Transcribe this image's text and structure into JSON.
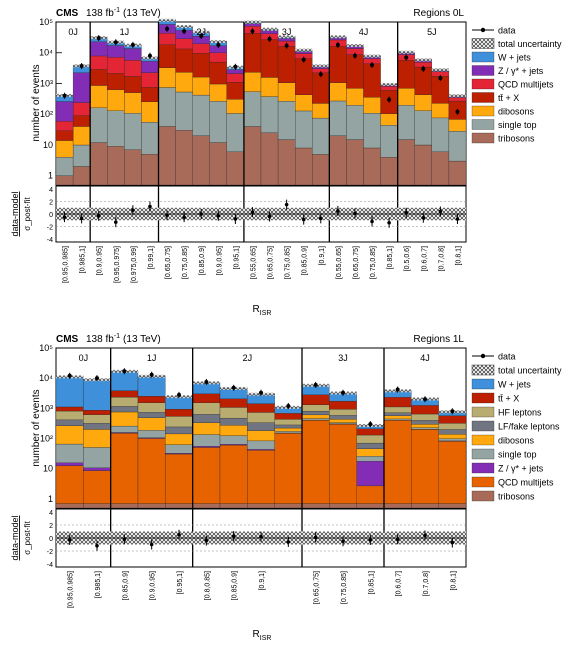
{
  "colors": {
    "wjets": "#3f90da",
    "zjets": "#832db6",
    "qcd": "#e42536",
    "ttx": "#bd1f01",
    "dibosons": "#ffa90e",
    "singletop": "#94a4a2",
    "tribosons": "#a96b59",
    "hf": "#b9ac70",
    "lf": "#717581",
    "qcd1l": "#e76300"
  },
  "chart_data": [
    {
      "type": "bar",
      "stacked": true,
      "y_scale": "log",
      "experiment": "CMS",
      "lumi": "138 fb",
      "lumi_sup": "-1",
      "energy": "(13 TeV)",
      "region": "Regions 0L",
      "ylabel": "number of events",
      "ratio_label": "data-model",
      "ratio_sublabel": "σ_post-fit",
      "ratio_ylim": [
        -4,
        4
      ],
      "ratio_ticks": [
        "4",
        "2",
        "0",
        "-2",
        "-4"
      ],
      "xlabel": "R_ISR",
      "y_tick_labels": [
        "10⁵",
        "10⁴",
        "10³",
        "10²",
        "10",
        "1"
      ],
      "ylim": [
        0.5,
        100000
      ],
      "jet_groups": [
        "0J",
        "1J",
        "2J",
        "3J",
        "4J",
        "5J"
      ],
      "bins_per_group": [
        2,
        4,
        5,
        5,
        4,
        4
      ],
      "categories": [
        "[0.95,0.985]",
        "[0.985,1]",
        "[0.9,0.95]",
        "[0.95,0.975]",
        "[0.975,0.99]",
        "[0.99,1]",
        "[0.65,0.75]",
        "[0.75,0.85]",
        "[0.85,0.9]",
        "[0.9,0.95]",
        "[0.95,1]",
        "[0.55,0.65]",
        "[0.65,0.75]",
        "[0.75,0.85]",
        "[0.85,0.9]",
        "[0.9,1]",
        "[0.55,0.65]",
        "[0.65,0.75]",
        "[0.75,0.85]",
        "[0.85,1]",
        "[0.5,0.6]",
        "[0.6,0.7]",
        "[0.7,0.8]",
        "[0.8,1]"
      ],
      "visible_tick_labels": [
        "[0.95,0.985]",
        "[0.985,1]",
        "[0.9,0.95]",
        "[0.95,0.975]",
        "[0.975,0.99]",
        "[0.99,1]",
        "[0.65,0.75]",
        "[0.75,0.85]",
        "[0.85,0.9]",
        "[0.9,0.95]",
        "[0.95,1]",
        "[0.55,0.65]",
        "[0.65,0.75]",
        "[0.75,0.85]",
        "[0.85,0.9]",
        "[0.9,1]",
        "[0.55,0.65]",
        "[0.65,0.75]",
        "[0.75,0.85]",
        "[0.85,1]",
        "[0.5,0.6]",
        "[0.6,0.7]",
        "[0.7,0.8]",
        "[0.8,1]"
      ],
      "legend_position": "right",
      "legend": [
        {
          "label": "data",
          "kind": "data"
        },
        {
          "label": "total uncertainty",
          "kind": "hatch"
        },
        {
          "label": "W + jets",
          "color_key": "wjets"
        },
        {
          "label": "Z / γ* + jets",
          "color_key": "zjets"
        },
        {
          "label": "QCD multijets",
          "color_key": "qcd"
        },
        {
          "label": "tt̄ + X",
          "color_key": "ttx"
        },
        {
          "label": "dibosons",
          "color_key": "dibosons"
        },
        {
          "label": "single top",
          "color_key": "singletop"
        },
        {
          "label": "tribosons",
          "color_key": "tribosons"
        }
      ],
      "stack_order": [
        "tribosons",
        "single top",
        "dibosons",
        "tt̄ + X",
        "QCD multijets",
        "Z / γ* + jets",
        "W + jets"
      ],
      "series": [
        {
          "name": "tribosons",
          "color_key": "tribosons",
          "values": [
            1.0,
            2.0,
            12,
            9,
            7,
            5,
            40,
            30,
            20,
            12,
            6,
            40,
            25,
            15,
            8,
            5,
            20,
            15,
            8,
            4,
            15,
            10,
            6,
            3
          ]
        },
        {
          "name": "single top",
          "color_key": "singletop",
          "values": [
            3,
            8,
            150,
            120,
            100,
            50,
            700,
            500,
            400,
            250,
            100,
            500,
            350,
            250,
            120,
            70,
            250,
            180,
            100,
            40,
            180,
            120,
            70,
            25
          ]
        },
        {
          "name": "dibosons",
          "color_key": "dibosons",
          "values": [
            10,
            30,
            700,
            500,
            400,
            200,
            2500,
            1800,
            1200,
            700,
            200,
            1800,
            1200,
            800,
            300,
            150,
            800,
            500,
            250,
            60,
            500,
            300,
            150,
            40
          ]
        },
        {
          "name": "tt̄ + X",
          "color_key": "ttx",
          "values": [
            15,
            50,
            2000,
            1500,
            1200,
            500,
            15000,
            11000,
            8000,
            4000,
            800,
            40000,
            25000,
            15000,
            6000,
            2000,
            15000,
            8000,
            4000,
            500,
            5000,
            3000,
            1500,
            200
          ]
        },
        {
          "name": "QCD multijets",
          "color_key": "qcd",
          "values": [
            30,
            150,
            5000,
            5000,
            4000,
            1500,
            25000,
            15000,
            10000,
            5000,
            1000,
            30000,
            15000,
            8000,
            3000,
            800,
            10000,
            5000,
            2000,
            200,
            3000,
            1500,
            700,
            80
          ]
        },
        {
          "name": "Z / γ* + jets",
          "color_key": "zjets",
          "values": [
            200,
            2000,
            15000,
            10000,
            8000,
            3000,
            40000,
            25000,
            15000,
            7000,
            700,
            15000,
            10000,
            5000,
            1500,
            400,
            4000,
            2000,
            800,
            80,
            1000,
            500,
            200,
            30
          ]
        },
        {
          "name": "W + jets",
          "color_key": "wjets",
          "values": [
            150,
            1500,
            8000,
            5000,
            4000,
            1500,
            30000,
            18000,
            12000,
            6000,
            600,
            12000,
            7000,
            4000,
            1200,
            300,
            3000,
            1500,
            600,
            50,
            700,
            400,
            150,
            20
          ]
        }
      ],
      "data_points": [
        400,
        3700,
        30000,
        22000,
        18000,
        8000,
        60000,
        50000,
        35000,
        18000,
        3500,
        50000,
        28000,
        17000,
        6000,
        2000,
        18000,
        8000,
        4000,
        300,
        7000,
        3000,
        1500,
        120
      ],
      "pulls": [
        -0.5,
        -0.7,
        -0.3,
        -1.3,
        0.6,
        1.2,
        -0.2,
        -0.5,
        0.0,
        -0.3,
        -0.8,
        0.3,
        -0.4,
        1.5,
        -0.9,
        -0.7,
        0.5,
        0.1,
        -1.2,
        -1.4,
        0.2,
        -0.6,
        0.4,
        -0.8
      ]
    },
    {
      "type": "bar",
      "stacked": true,
      "y_scale": "log",
      "experiment": "CMS",
      "lumi": "138 fb",
      "lumi_sup": "-1",
      "energy": "(13 TeV)",
      "region": "Regions 1L",
      "ylabel": "number of events",
      "ratio_label": "data-model",
      "ratio_sublabel": "σ_post-fit",
      "ratio_ylim": [
        -4,
        4
      ],
      "ratio_ticks": [
        "4",
        "2",
        "0",
        "-2",
        "-4"
      ],
      "xlabel": "R_ISR",
      "y_tick_labels": [
        "10⁵",
        "10⁴",
        "10³",
        "10²",
        "10",
        "1"
      ],
      "ylim": [
        0.5,
        100000
      ],
      "jet_groups": [
        "0J",
        "1J",
        "2J",
        "3J",
        "4J"
      ],
      "bins_per_group": [
        2,
        3,
        4,
        3,
        3
      ],
      "categories": [
        "[0.95,0.985]",
        "[0.985,1]",
        "[0.85,0.9]",
        "[0.9,0.95]",
        "[0.95,1]",
        "[0.8,0.85]",
        "[0.85,0.9]",
        "[0.9,1]",
        "[0.9,1] ",
        "[0.65,0.75]",
        "[0.75,0.85]",
        "[0.85,1]",
        "[0.6,0.7]",
        "[0.7,0.8]",
        "[0.8,1]"
      ],
      "visible_tick_labels": [
        "[0.95,0.985]",
        "[0.985,1]",
        "[0.85,0.9]",
        "[0.9,0.95]",
        "[0.95,1]",
        "[0.8,0.85]",
        "[0.85,0.9]",
        "[0.9,1]",
        "",
        "[0.65,0.75]",
        "[0.75,0.85]",
        "[0.85,1]",
        "[0.6,0.7]",
        "[0.7,0.8]",
        "[0.8,1]"
      ],
      "legend_position": "right",
      "legend": [
        {
          "label": "data",
          "kind": "data"
        },
        {
          "label": "total uncertainty",
          "kind": "hatch"
        },
        {
          "label": "W + jets",
          "color_key": "wjets"
        },
        {
          "label": "tt̄ + X",
          "color_key": "ttx"
        },
        {
          "label": "HF leptons",
          "color_key": "hf"
        },
        {
          "label": "LF/fake leptons",
          "color_key": "lf"
        },
        {
          "label": "dibosons",
          "color_key": "dibosons"
        },
        {
          "label": "single top",
          "color_key": "singletop"
        },
        {
          "label": "Z / γ* + jets",
          "color_key": "zjets"
        },
        {
          "label": "QCD multijets",
          "color_key": "qcd1l"
        },
        {
          "label": "tribosons",
          "color_key": "tribosons"
        }
      ],
      "stack_order": [
        "tribosons",
        "QCD multijets",
        "Z / γ* + jets",
        "single top",
        "dibosons",
        "LF/fake leptons",
        "HF leptons",
        "tt̄ + X",
        "W + jets"
      ],
      "series": [
        {
          "name": "tribosons",
          "color_key": "tribosons",
          "values": [
            0.7,
            0.7,
            0.7,
            0.7,
            0.7,
            0.7,
            0.7,
            0.7,
            0.7,
            0.7,
            0.7,
            0.7,
            0.7,
            0.7,
            0.7
          ]
        },
        {
          "name": "QCD multijets",
          "color_key": "qcd1l",
          "values": [
            12,
            8,
            150,
            100,
            30,
            50,
            60,
            40,
            150,
            400,
            300,
            2,
            400,
            200,
            80
          ]
        },
        {
          "name": "Z / γ* + jets",
          "color_key": "zjets",
          "values": [
            3,
            2,
            8,
            6,
            2,
            5,
            4,
            3,
            2,
            8,
            6,
            15,
            6,
            4,
            3
          ]
        },
        {
          "name": "single top",
          "color_key": "singletop",
          "values": [
            50,
            40,
            100,
            80,
            30,
            80,
            60,
            40,
            20,
            50,
            30,
            8,
            40,
            25,
            15
          ]
        },
        {
          "name": "dibosons",
          "color_key": "dibosons",
          "values": [
            200,
            150,
            500,
            300,
            80,
            200,
            150,
            100,
            50,
            150,
            100,
            20,
            120,
            70,
            40
          ]
        },
        {
          "name": "LF/fake leptons",
          "color_key": "lf",
          "values": [
            150,
            120,
            400,
            250,
            100,
            300,
            200,
            150,
            60,
            200,
            150,
            25,
            150,
            100,
            60
          ]
        },
        {
          "name": "HF leptons",
          "color_key": "hf",
          "values": [
            400,
            300,
            1200,
            800,
            300,
            900,
            600,
            400,
            150,
            500,
            350,
            60,
            400,
            250,
            120
          ]
        },
        {
          "name": "tt̄ + X",
          "color_key": "ttx",
          "values": [
            300,
            250,
            1500,
            1000,
            400,
            1500,
            1000,
            700,
            250,
            1500,
            800,
            80,
            1200,
            600,
            250
          ]
        },
        {
          "name": "W + jets",
          "color_key": "wjets",
          "values": [
            10000,
            8000,
            13000,
            9000,
            1500,
            4000,
            2500,
            1500,
            400,
            3000,
            1500,
            60,
            1500,
            800,
            200
          ]
        }
      ],
      "data_points": [
        12000,
        10000,
        17000,
        13000,
        2800,
        7500,
        4800,
        3300,
        1200,
        6000,
        3300,
        300,
        4200,
        2000,
        800
      ],
      "pulls": [
        -0.3,
        -1.2,
        -0.2,
        -1.0,
        0.5,
        -0.4,
        0.3,
        0.2,
        -0.6,
        0.1,
        -0.5,
        -0.3,
        -0.2,
        0.4,
        -0.7
      ]
    }
  ]
}
